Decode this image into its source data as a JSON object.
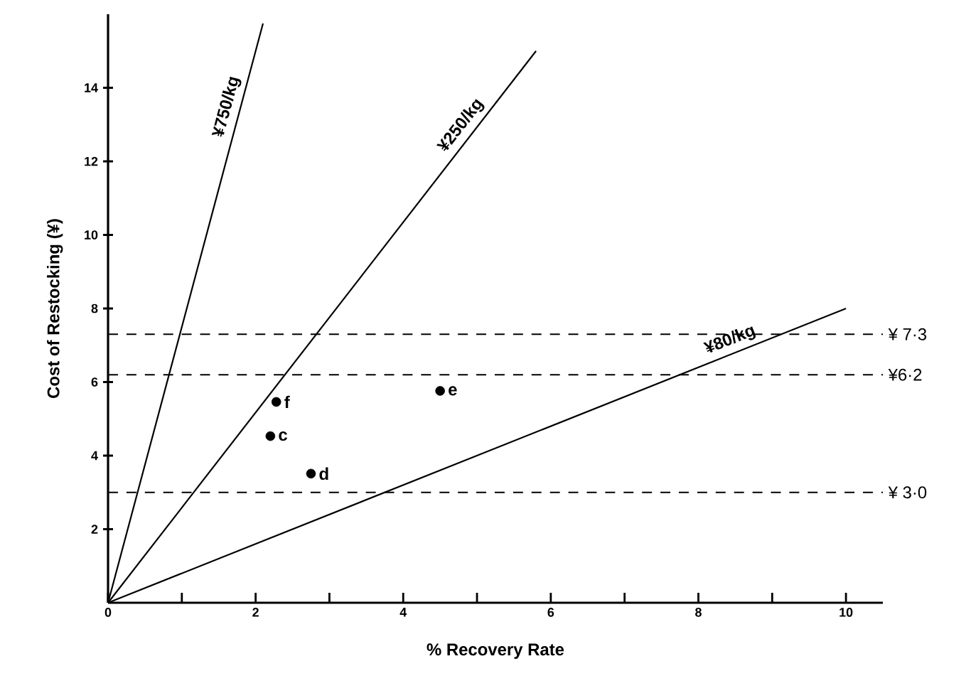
{
  "chart_data": {
    "type": "line",
    "xlabel": "% Recovery Rate",
    "ylabel": "Cost of Restocking (¥)",
    "xlim": [
      0,
      10.5
    ],
    "ylim": [
      0,
      16
    ],
    "xticks": [
      0,
      {
        "value": 1,
        "label": null
      },
      2,
      {
        "value": 3,
        "label": null
      },
      4,
      {
        "value": 5,
        "label": null
      },
      6,
      {
        "value": 7,
        "label": null
      },
      8,
      {
        "value": 9,
        "label": null
      },
      10
    ],
    "yticks": [
      2,
      4,
      6,
      8,
      10,
      12,
      14
    ],
    "series": [
      {
        "name": "¥750/kg",
        "color": "#000000",
        "x": [
          0,
          2.1
        ],
        "values": [
          0,
          15.75
        ]
      },
      {
        "name": "¥250/kg",
        "color": "#000000",
        "x": [
          0,
          5.8
        ],
        "values": [
          0,
          15.0
        ]
      },
      {
        "name": "¥80/kg",
        "color": "#000000",
        "x": [
          0,
          10
        ],
        "values": [
          0,
          8.0
        ]
      },
      {
        "type": "scatter",
        "color": "#000000",
        "x": [
          2.28,
          2.2,
          2.75,
          4.5
        ],
        "values": [
          5.46,
          4.53,
          3.51,
          5.76
        ]
      }
    ],
    "ref_lines": [
      {
        "axis": "y",
        "value": 7.3,
        "label": "¥ 7·3",
        "color": "#000000",
        "line_style": "dashed"
      },
      {
        "axis": "y",
        "value": 6.2,
        "label": "¥6·2",
        "color": "#000000",
        "line_style": "dashed"
      },
      {
        "axis": "y",
        "value": 3.0,
        "label": "¥ 3·0",
        "color": "#000000",
        "line_style": "dashed"
      }
    ],
    "annotations": [
      {
        "text": "f",
        "x": 2.28,
        "y": 5.46
      },
      {
        "text": "c",
        "x": 2.2,
        "y": 4.53
      },
      {
        "text": "d",
        "x": 2.75,
        "y": 3.51
      },
      {
        "text": "e",
        "x": 4.5,
        "y": 5.76
      }
    ]
  }
}
